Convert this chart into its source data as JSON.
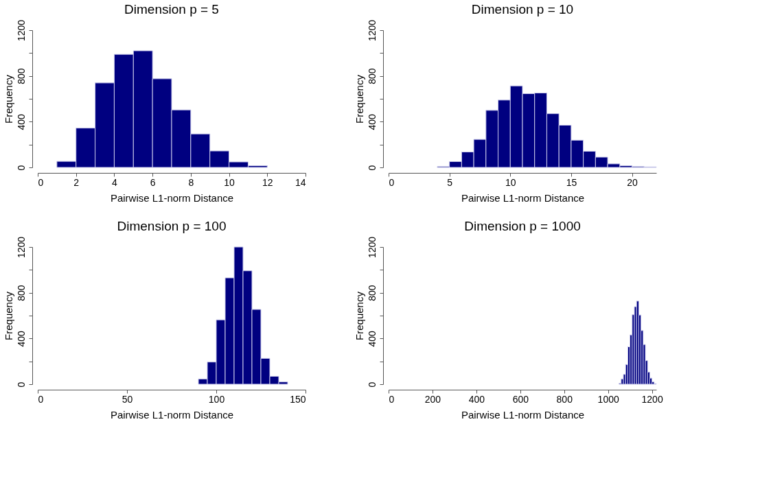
{
  "chart_data": [
    {
      "type": "histogram",
      "title": "Dimension  p = 5",
      "xlabel": "Pairwise L1-norm Distance",
      "ylabel": "Frequency",
      "color": "#000080",
      "grid": false,
      "bins": [
        1,
        2,
        3,
        4,
        5,
        6,
        7,
        8,
        9,
        10,
        11,
        12
      ],
      "values": [
        53,
        344,
        739,
        989,
        1020,
        775,
        503,
        293,
        144,
        48,
        15
      ],
      "xlim": [
        0,
        14
      ],
      "xticks": [
        0,
        2,
        4,
        6,
        8,
        10,
        12,
        14
      ],
      "ylim": [
        0,
        1200
      ],
      "yticks": [
        0,
        {
          "value": 200,
          "label": null
        },
        400,
        {
          "value": 600,
          "label": null
        },
        800,
        {
          "value": 1000,
          "label": null
        },
        1200
      ]
    },
    {
      "type": "histogram",
      "title": "Dimension  p = 10",
      "xlabel": "Pairwise L1-norm Distance",
      "ylabel": "Frequency",
      "color": "#000080",
      "grid": false,
      "bins": [
        4,
        5,
        6,
        7,
        8,
        9,
        10,
        11,
        12,
        13,
        14,
        15,
        16,
        17,
        18,
        19,
        20,
        21,
        22
      ],
      "values": [
        7,
        51,
        135,
        245,
        499,
        589,
        713,
        645,
        651,
        470,
        369,
        238,
        141,
        90,
        31,
        15,
        7,
        4
      ],
      "xlim": [
        0,
        22
      ],
      "xticks": [
        0,
        5,
        10,
        15,
        20
      ],
      "ylim": [
        0,
        1200
      ],
      "yticks": [
        0,
        {
          "value": 200,
          "label": null
        },
        400,
        {
          "value": 600,
          "label": null
        },
        800,
        {
          "value": 1000,
          "label": null
        },
        1200
      ]
    },
    {
      "type": "histogram",
      "title": "Dimension  p = 100",
      "xlabel": "Pairwise L1-norm Distance",
      "ylabel": "Frequency",
      "color": "#000080",
      "grid": false,
      "bins": [
        90,
        95,
        100,
        105,
        110,
        115,
        120,
        125,
        130,
        135,
        140
      ],
      "values": [
        46,
        194,
        563,
        930,
        1200,
        992,
        654,
        226,
        69,
        20
      ],
      "xlim": [
        0,
        150
      ],
      "xticks": [
        0,
        50,
        100,
        150
      ],
      "ylim": [
        0,
        1200
      ],
      "yticks": [
        0,
        {
          "value": 200,
          "label": null
        },
        400,
        {
          "value": 600,
          "label": null
        },
        800,
        {
          "value": 1000,
          "label": null
        },
        1200
      ]
    },
    {
      "type": "histogram",
      "title": "Dimension  p = 1000",
      "xlabel": "Pairwise L1-norm Distance",
      "ylabel": "Frequency",
      "color": "#000080",
      "grid": false,
      "bins": [
        1050,
        1060,
        1070,
        1080,
        1090,
        1100,
        1110,
        1120,
        1130,
        1140,
        1150,
        1160,
        1170,
        1180,
        1190,
        1200,
        1210,
        1220
      ],
      "values": [
        7,
        46,
        86,
        172,
        327,
        431,
        608,
        678,
        727,
        605,
        469,
        347,
        206,
        106,
        53,
        20,
        4
      ],
      "xlim": [
        0,
        1220
      ],
      "xticks": [
        0,
        200,
        400,
        600,
        800,
        1000,
        1200
      ],
      "ylim": [
        0,
        1200
      ],
      "yticks": [
        0,
        {
          "value": 200,
          "label": null
        },
        400,
        {
          "value": 600,
          "label": null
        },
        800,
        {
          "value": 1000,
          "label": null
        },
        1200
      ]
    }
  ]
}
